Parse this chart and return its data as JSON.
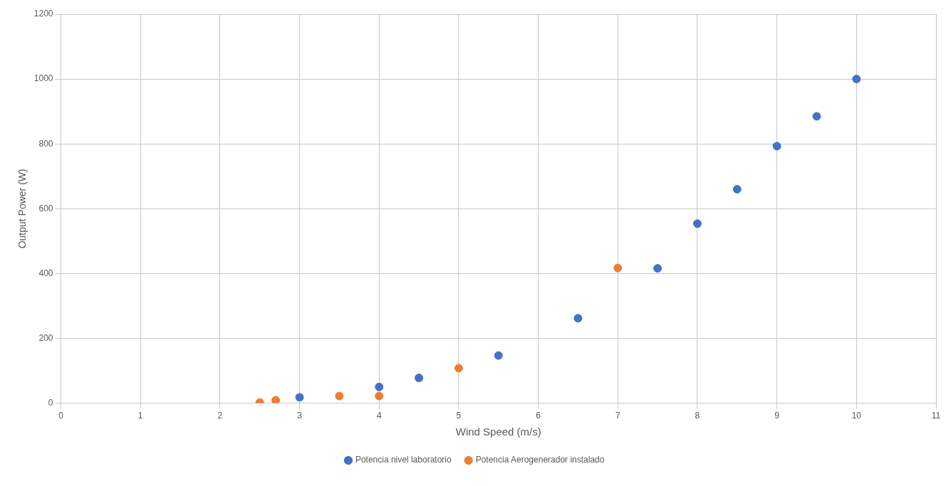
{
  "chart_data": {
    "type": "scatter",
    "xlabel": "Wind Speed (m/s)",
    "ylabel": "Output Power (W)",
    "xlim": [
      0,
      11
    ],
    "xticks": [
      0,
      1,
      2,
      3,
      4,
      5,
      6,
      7,
      8,
      9,
      10,
      11
    ],
    "ylim": [
      0,
      1200
    ],
    "yticks": [
      0,
      200,
      400,
      600,
      800,
      1000,
      1200
    ],
    "grid": true,
    "legend": "bottom",
    "marker": "circle",
    "series": [
      {
        "name": "Potencia nivel laboratorio",
        "color": "#4472c4",
        "x": [
          3,
          4,
          4.5,
          5.5,
          6.5,
          7.5,
          8,
          8.5,
          9,
          9.5,
          10
        ],
        "values": [
          18,
          50,
          78,
          147,
          262,
          416,
          554,
          660,
          793,
          885,
          1000
        ]
      },
      {
        "name": "Potencia Aerogenerador instalado",
        "color": "#ed7d31",
        "x": [
          2.5,
          2.7,
          3.5,
          4,
          5,
          7
        ],
        "values": [
          2,
          9,
          22,
          22,
          108,
          417
        ]
      }
    ]
  }
}
